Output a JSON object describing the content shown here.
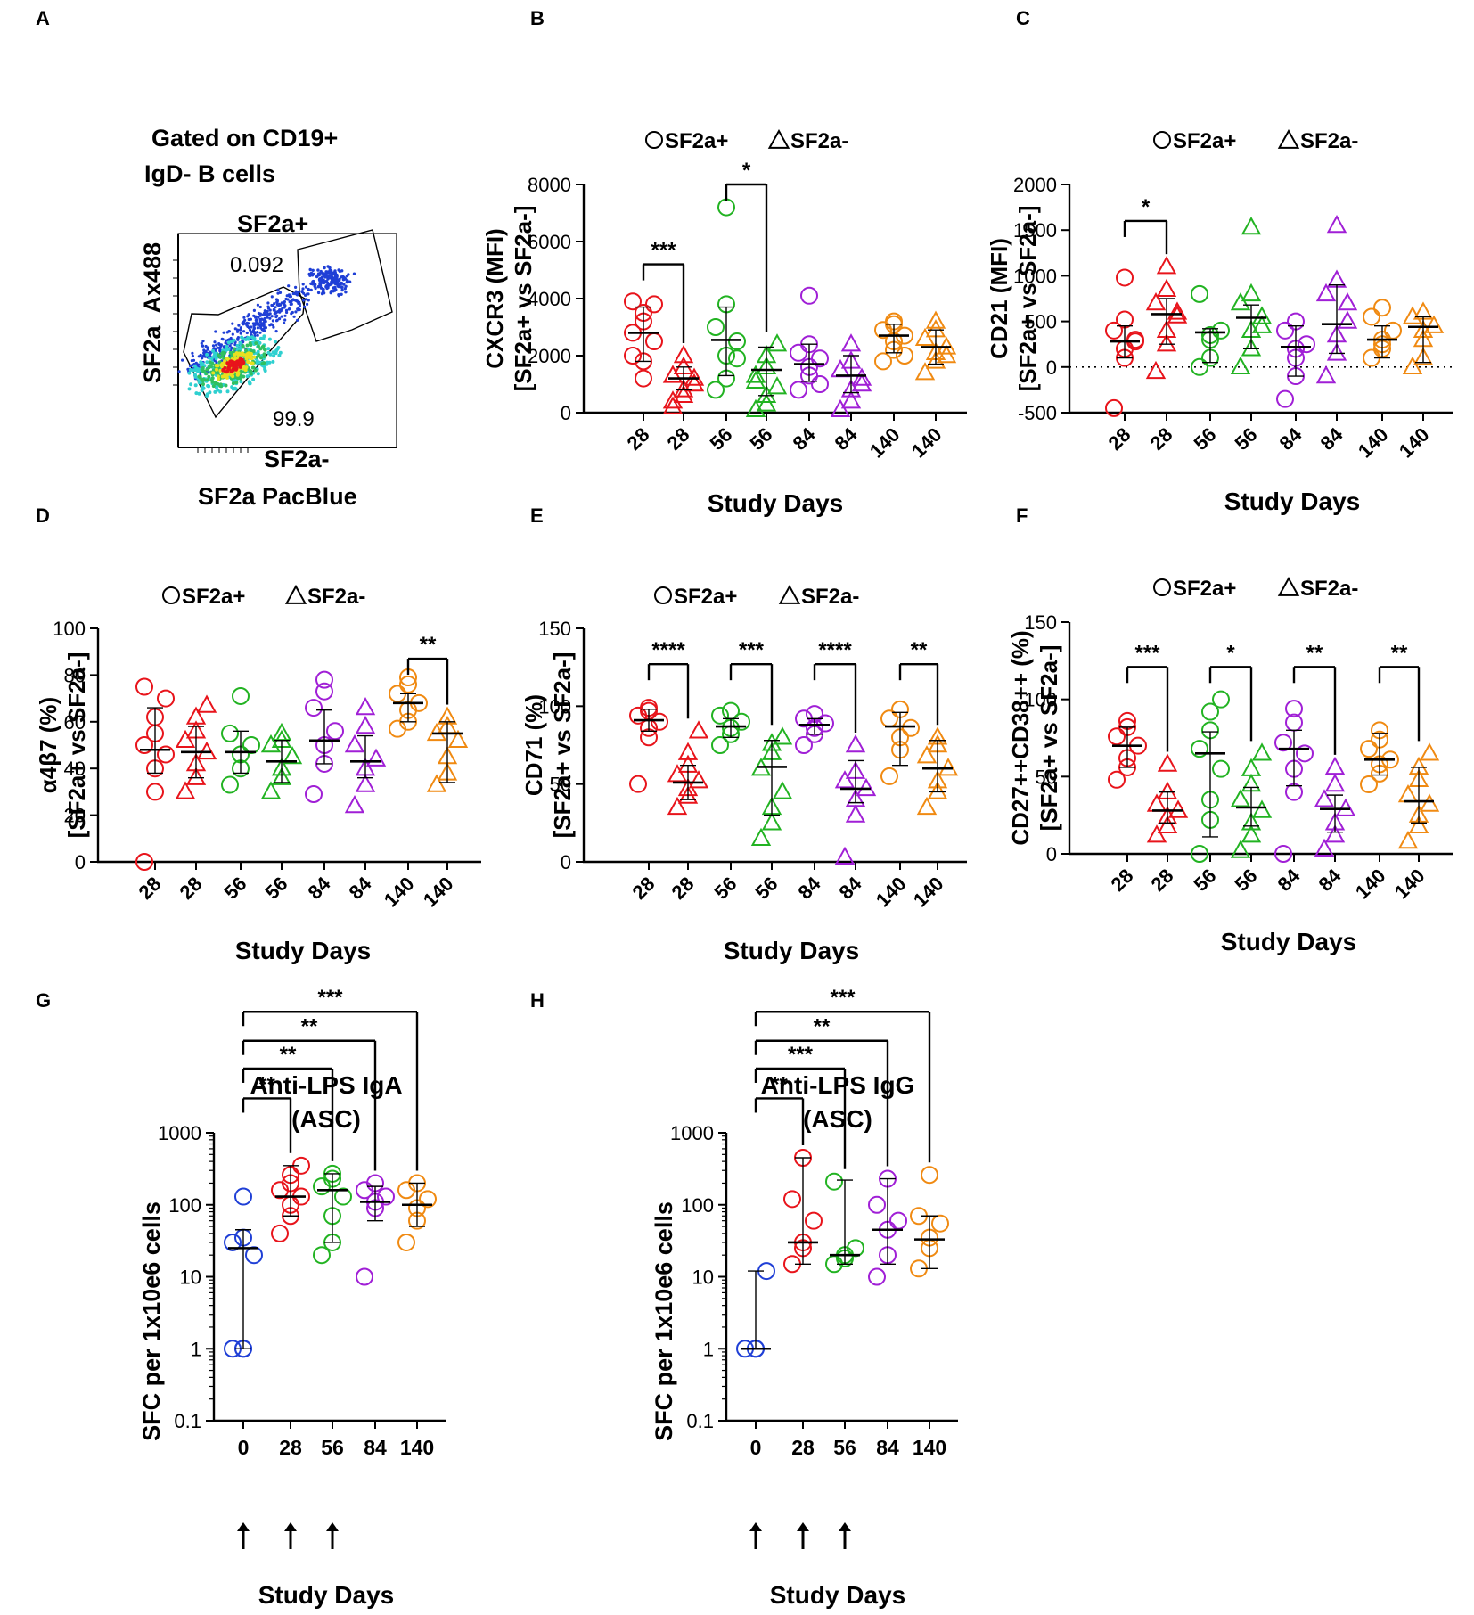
{
  "colors": {
    "d0": "#1f3fd6",
    "d28": "#e8141b",
    "d56": "#22b322",
    "d84": "#a01fd6",
    "d140": "#f08a12",
    "black": "#000000"
  },
  "panels": {
    "A": {
      "letter": "A",
      "title_line1": "Gated on CD19+",
      "title_line2": "IgD- B cells",
      "gate_pos_label": "SF2a+",
      "gate_pos_value": "0.092",
      "gate_neg_value": "99.9",
      "gate_neg_label": "SF2a-",
      "y_label": "SF2a  Ax488",
      "x_label": "SF2a PacBlue"
    },
    "B": {
      "letter": "B"
    },
    "C": {
      "letter": "C"
    },
    "D": {
      "letter": "D"
    },
    "E": {
      "letter": "E"
    },
    "F": {
      "letter": "F"
    },
    "G": {
      "letter": "G"
    },
    "H": {
      "letter": "H"
    }
  },
  "chart_data": [
    {
      "id": "B",
      "type": "scatter",
      "legend_pos": "SF2a+",
      "legend_neg": "SF2a-",
      "ylabel_line1": "CXCR3 (MFI)",
      "ylabel_line2": "[SF2a+ vs SF2a-]",
      "xlabel": "Study Days",
      "yscale": "linear",
      "ylim": [
        0,
        8000
      ],
      "yticks": [
        0,
        2000,
        4000,
        6000,
        8000
      ],
      "categories": [
        "28",
        "28",
        "56",
        "56",
        "84",
        "84",
        "140",
        "140"
      ],
      "markers": [
        "circle",
        "triangle",
        "circle",
        "triangle",
        "circle",
        "triangle",
        "circle",
        "triangle"
      ],
      "colors": [
        "d28",
        "d28",
        "d56",
        "d56",
        "d84",
        "d84",
        "d140",
        "d140"
      ],
      "medians": [
        2800,
        1200,
        2550,
        1500,
        1700,
        1300,
        2700,
        2300
      ],
      "iqr": [
        [
          1800,
          3700
        ],
        [
          800,
          1600
        ],
        [
          1300,
          3700
        ],
        [
          600,
          2300
        ],
        [
          1100,
          2400
        ],
        [
          700,
          2000
        ],
        [
          2100,
          3100
        ],
        [
          1700,
          2900
        ]
      ],
      "points": [
        [
          2000,
          1800,
          1200,
          2500,
          2800,
          3200,
          3500,
          3800,
          3900
        ],
        [
          200,
          600,
          800,
          1000,
          1300,
          1600,
          2000,
          1200,
          400
        ],
        [
          800,
          1200,
          2000,
          2500,
          3000,
          3800,
          7200,
          1900
        ],
        [
          100,
          300,
          600,
          900,
          1300,
          1600,
          2000,
          2400,
          1100
        ],
        [
          800,
          1300,
          1600,
          1900,
          2100,
          2400,
          4100,
          1000
        ],
        [
          100,
          400,
          800,
          1200,
          1500,
          1800,
          2400,
          1000
        ],
        [
          1800,
          2200,
          2500,
          2700,
          2900,
          3100,
          3200,
          2000
        ],
        [
          1400,
          1800,
          2100,
          2300,
          2600,
          2900,
          3200,
          2000
        ]
      ],
      "sig": [
        {
          "a": 0,
          "b": 1,
          "y": 5200,
          "label": "***"
        },
        {
          "a": 2,
          "b": 3,
          "y": 8000,
          "label": "*"
        }
      ]
    },
    {
      "id": "C",
      "type": "scatter",
      "legend_pos": "SF2a+",
      "legend_neg": "SF2a-",
      "ylabel_line1": "CD21 (MFI)",
      "ylabel_line2": "[SF2a+ vs SF2a-]",
      "xlabel": "Study Days",
      "yscale": "linear",
      "ylim": [
        -500,
        2000
      ],
      "yticks": [
        -500,
        0,
        500,
        1000,
        1500,
        2000
      ],
      "zero_line": true,
      "categories": [
        "28",
        "28",
        "56",
        "56",
        "84",
        "84",
        "140",
        "140"
      ],
      "markers": [
        "circle",
        "triangle",
        "circle",
        "triangle",
        "circle",
        "triangle",
        "circle",
        "triangle"
      ],
      "colors": [
        "d28",
        "d28",
        "d56",
        "d56",
        "d84",
        "d84",
        "d140",
        "d140"
      ],
      "medians": [
        280,
        580,
        380,
        540,
        220,
        470,
        300,
        440
      ],
      "iqr": [
        [
          100,
          450
        ],
        [
          250,
          750
        ],
        [
          50,
          420
        ],
        [
          200,
          680
        ],
        [
          -100,
          450
        ],
        [
          150,
          900
        ],
        [
          100,
          450
        ],
        [
          50,
          550
        ]
      ],
      "points": [
        [
          -450,
          100,
          200,
          280,
          400,
          520,
          980,
          300
        ],
        [
          -50,
          250,
          400,
          560,
          700,
          850,
          1100,
          600
        ],
        [
          0,
          100,
          300,
          400,
          800,
          350
        ],
        [
          0,
          200,
          400,
          550,
          700,
          800,
          1530,
          450
        ],
        [
          -350,
          -100,
          100,
          250,
          400,
          500,
          200
        ],
        [
          -100,
          150,
          350,
          500,
          800,
          950,
          1550,
          700
        ],
        [
          100,
          200,
          300,
          400,
          550,
          650,
          250
        ],
        [
          0,
          100,
          300,
          450,
          550,
          600,
          400
        ]
      ],
      "sig": [
        {
          "a": 0,
          "b": 1,
          "y": 1600,
          "label": "*"
        }
      ]
    },
    {
      "id": "D",
      "type": "scatter",
      "legend_pos": "SF2a+",
      "legend_neg": "SF2a-",
      "ylabel_line1": "α4β7 (%)",
      "ylabel_line2": "[SF2a+ vs SF2a-]",
      "xlabel": "Study Days",
      "yscale": "linear",
      "ylim": [
        0,
        100
      ],
      "yticks": [
        0,
        20,
        40,
        60,
        80,
        100
      ],
      "categories": [
        "28",
        "28",
        "56",
        "56",
        "84",
        "84",
        "140",
        "140"
      ],
      "markers": [
        "circle",
        "triangle",
        "circle",
        "triangle",
        "circle",
        "triangle",
        "circle",
        "triangle"
      ],
      "colors": [
        "d28",
        "d28",
        "d56",
        "d56",
        "d84",
        "d84",
        "d140",
        "d140"
      ],
      "medians": [
        48,
        47,
        47,
        43,
        52,
        43,
        68,
        55
      ],
      "iqr": [
        [
          38,
          66
        ],
        [
          36,
          58
        ],
        [
          38,
          56
        ],
        [
          34,
          52
        ],
        [
          42,
          65
        ],
        [
          36,
          54
        ],
        [
          60,
          72
        ],
        [
          34,
          60
        ]
      ],
      "points": [
        [
          0,
          30,
          40,
          46,
          50,
          55,
          62,
          70,
          75
        ],
        [
          30,
          36,
          42,
          47,
          52,
          56,
          62,
          67
        ],
        [
          33,
          40,
          46,
          50,
          55,
          71
        ],
        [
          30,
          36,
          40,
          45,
          50,
          55,
          52
        ],
        [
          29,
          42,
          50,
          56,
          66,
          73,
          78
        ],
        [
          24,
          33,
          40,
          44,
          50,
          58,
          66
        ],
        [
          57,
          60,
          65,
          68,
          72,
          76,
          79
        ],
        [
          33,
          38,
          45,
          52,
          55,
          58,
          62
        ]
      ],
      "sig": [
        {
          "a": 6,
          "b": 7,
          "y": 87,
          "label": "**"
        }
      ]
    },
    {
      "id": "E",
      "type": "scatter",
      "legend_pos": "SF2a+",
      "legend_neg": "SF2a-",
      "ylabel_line1": "CD71 (%)",
      "ylabel_line2": "[SF2a+ vs SF2a-]",
      "xlabel": "Study Days",
      "yscale": "linear",
      "ylim": [
        0,
        150
      ],
      "yticks": [
        0,
        50,
        100,
        150
      ],
      "categories": [
        "28",
        "28",
        "56",
        "56",
        "84",
        "84",
        "140",
        "140"
      ],
      "markers": [
        "circle",
        "triangle",
        "circle",
        "triangle",
        "circle",
        "triangle",
        "circle",
        "triangle"
      ],
      "colors": [
        "d28",
        "d28",
        "d56",
        "d56",
        "d84",
        "d84",
        "d140",
        "d140"
      ],
      "medians": [
        91,
        51,
        87,
        61,
        88,
        47,
        87,
        60
      ],
      "iqr": [
        [
          84,
          98
        ],
        [
          40,
          62
        ],
        [
          80,
          92
        ],
        [
          30,
          78
        ],
        [
          82,
          92
        ],
        [
          38,
          65
        ],
        [
          62,
          96
        ],
        [
          45,
          78
        ]
      ],
      "points": [
        [
          50,
          80,
          86,
          90,
          94,
          97,
          99
        ],
        [
          35,
          42,
          47,
          52,
          56,
          62,
          70,
          84
        ],
        [
          75,
          82,
          86,
          90,
          94,
          97
        ],
        [
          15,
          25,
          35,
          45,
          60,
          70,
          76,
          80
        ],
        [
          75,
          82,
          86,
          89,
          92,
          95
        ],
        [
          3,
          30,
          40,
          47,
          52,
          58,
          75
        ],
        [
          55,
          72,
          80,
          86,
          92,
          98
        ],
        [
          35,
          45,
          52,
          60,
          68,
          75,
          80
        ]
      ],
      "sig": [
        {
          "a": 0,
          "b": 1,
          "y": 127,
          "label": "****"
        },
        {
          "a": 2,
          "b": 3,
          "y": 127,
          "label": "***"
        },
        {
          "a": 4,
          "b": 5,
          "y": 127,
          "label": "****"
        },
        {
          "a": 6,
          "b": 7,
          "y": 127,
          "label": "**"
        }
      ]
    },
    {
      "id": "F",
      "type": "scatter",
      "legend_pos": "SF2a+",
      "legend_neg": "SF2a-",
      "ylabel_line1": "CD27++CD38++ (%)",
      "ylabel_line2": "[SF2a+ vs SF2a-]",
      "xlabel": "Study Days",
      "yscale": "linear",
      "ylim": [
        0,
        150
      ],
      "yticks": [
        0,
        50,
        100,
        150
      ],
      "categories": [
        "28",
        "28",
        "56",
        "56",
        "84",
        "84",
        "140",
        "140"
      ],
      "markers": [
        "circle",
        "triangle",
        "circle",
        "triangle",
        "circle",
        "triangle",
        "circle",
        "triangle"
      ],
      "colors": [
        "d28",
        "d28",
        "d56",
        "d56",
        "d84",
        "d84",
        "d140",
        "d140"
      ],
      "medians": [
        70,
        28,
        65,
        30,
        68,
        29,
        61,
        34
      ],
      "iqr": [
        [
          56,
          82
        ],
        [
          20,
          40
        ],
        [
          11,
          79
        ],
        [
          18,
          43
        ],
        [
          44,
          80
        ],
        [
          14,
          38
        ],
        [
          51,
          78
        ],
        [
          20,
          56
        ]
      ],
      "points": [
        [
          48,
          56,
          62,
          70,
          76,
          82,
          86
        ],
        [
          12,
          18,
          24,
          28,
          32,
          40,
          58
        ],
        [
          0,
          22,
          35,
          55,
          68,
          80,
          92,
          100
        ],
        [
          2,
          12,
          20,
          28,
          35,
          45,
          55,
          65
        ],
        [
          0,
          40,
          55,
          65,
          72,
          85,
          94
        ],
        [
          3,
          12,
          20,
          29,
          35,
          45,
          56
        ],
        [
          45,
          52,
          58,
          61,
          68,
          74,
          80
        ],
        [
          8,
          18,
          25,
          32,
          38,
          48,
          56,
          65
        ]
      ],
      "sig": [
        {
          "a": 0,
          "b": 1,
          "y": 121,
          "label": "***"
        },
        {
          "a": 2,
          "b": 3,
          "y": 121,
          "label": "*"
        },
        {
          "a": 4,
          "b": 5,
          "y": 121,
          "label": "**"
        },
        {
          "a": 6,
          "b": 7,
          "y": 121,
          "label": "**"
        }
      ]
    },
    {
      "id": "G",
      "type": "scatter",
      "title_line1": "Anti-LPS IgA",
      "title_line2": "(ASC)",
      "ylabel_line1": "SFC per 1x10e6 cells",
      "xlabel": "Study Days",
      "yscale": "log",
      "ylim": [
        0.1,
        1000
      ],
      "yticks": [
        0.1,
        1,
        10,
        100,
        1000
      ],
      "ytick_labels": [
        "0.1",
        "1",
        "10",
        "100",
        "1000"
      ],
      "categories": [
        "0",
        "28",
        "56",
        "84",
        "140"
      ],
      "markers": [
        "circle",
        "circle",
        "circle",
        "circle",
        "circle"
      ],
      "colors": [
        "d0",
        "d28",
        "d56",
        "d84",
        "d140"
      ],
      "arrows": [
        0,
        1,
        2
      ],
      "medians": [
        25,
        130,
        160,
        110,
        100
      ],
      "iqr": [
        [
          1,
          45
        ],
        [
          70,
          350
        ],
        [
          30,
          270
        ],
        [
          60,
          180
        ],
        [
          50,
          200
        ]
      ],
      "points": [
        [
          1,
          1,
          1,
          20,
          30,
          35,
          130
        ],
        [
          40,
          70,
          100,
          130,
          160,
          200,
          260,
          350
        ],
        [
          20,
          30,
          70,
          130,
          180,
          230,
          270
        ],
        [
          10,
          90,
          110,
          130,
          160,
          200
        ],
        [
          30,
          60,
          90,
          120,
          160,
          200
        ]
      ],
      "sig": [
        {
          "a": 0,
          "b": 1,
          "y": 3000,
          "label": "**"
        },
        {
          "a": 0,
          "b": 2,
          "y": 7800,
          "label": "**"
        },
        {
          "a": 0,
          "b": 3,
          "y": 19000,
          "label": "**"
        },
        {
          "a": 0,
          "b": 4,
          "y": 48000,
          "label": "***"
        }
      ]
    },
    {
      "id": "H",
      "type": "scatter",
      "title_line1": "Anti-LPS IgG",
      "title_line2": "(ASC)",
      "ylabel_line1": "SFC per 1x10e6 cells",
      "xlabel": "Study Days",
      "yscale": "log",
      "ylim": [
        0.1,
        1000
      ],
      "yticks": [
        0.1,
        1,
        10,
        100,
        1000
      ],
      "ytick_labels": [
        "0.1",
        "1",
        "10",
        "100",
        "1000"
      ],
      "categories": [
        "0",
        "28",
        "56",
        "84",
        "140"
      ],
      "markers": [
        "circle",
        "circle",
        "circle",
        "circle",
        "circle"
      ],
      "colors": [
        "d0",
        "d28",
        "d56",
        "d84",
        "d140"
      ],
      "arrows": [
        0,
        1,
        2
      ],
      "medians": [
        1,
        30,
        20,
        45,
        33
      ],
      "iqr": [
        [
          1,
          12
        ],
        [
          15,
          450
        ],
        [
          15,
          220
        ],
        [
          15,
          230
        ],
        [
          13,
          70
        ]
      ],
      "points": [
        [
          1,
          1,
          1,
          12
        ],
        [
          15,
          25,
          30,
          60,
          120,
          450
        ],
        [
          15,
          18,
          20,
          25,
          210
        ],
        [
          10,
          20,
          45,
          60,
          100,
          230
        ],
        [
          13,
          25,
          35,
          55,
          70,
          260
        ]
      ],
      "sig": [
        {
          "a": 0,
          "b": 1,
          "y": 3000,
          "label": "**"
        },
        {
          "a": 0,
          "b": 2,
          "y": 7800,
          "label": "***"
        },
        {
          "a": 0,
          "b": 3,
          "y": 19000,
          "label": "**"
        },
        {
          "a": 0,
          "b": 4,
          "y": 48000,
          "label": "***"
        }
      ]
    }
  ]
}
